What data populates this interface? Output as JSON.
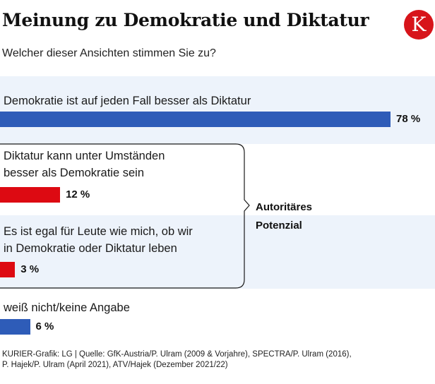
{
  "header": {
    "title": "Meinung zu Demokratie und Diktatur",
    "subtitle": "Welcher dieser Ansichten stimmen Sie zu?",
    "logo_letter": "K"
  },
  "colors": {
    "blue": "#2e5cb8",
    "red": "#dd0a12",
    "band": "#edf3fb",
    "logo": "#d7141a"
  },
  "chart_data": {
    "type": "bar",
    "orientation": "horizontal",
    "categories": [
      "Demokratie ist auf jeden Fall besser als Diktatur",
      "Diktatur kann unter Umständen besser als Demokratie sein",
      "Es ist egal für Leute wie mich, ob wir in Demokratie oder Diktatur leben",
      "weiß nicht/keine Angabe"
    ],
    "values": [
      78,
      12,
      3,
      6
    ],
    "value_labels": [
      "78 %",
      "12 %",
      "3 %",
      "6 %"
    ],
    "bar_colors": [
      "#2e5cb8",
      "#dd0a12",
      "#dd0a12",
      "#2e5cb8"
    ],
    "label_lines": [
      [
        "Demokratie ist auf jeden Fall besser als Diktatur"
      ],
      [
        "Diktatur kann unter Umständen",
        "besser als Demokratie sein"
      ],
      [
        "Es ist egal für Leute wie mich, ob wir",
        "in Demokratie oder Diktatur leben"
      ],
      [
        "weiß nicht/keine Angabe"
      ]
    ],
    "group": {
      "label_lines": [
        "Autoritäres",
        "Potenzial"
      ],
      "members": [
        1,
        2
      ]
    },
    "xlim": [
      0,
      78
    ]
  },
  "footer": {
    "source_lines": [
      "KURIER-Grafik: LG | Quelle: GfK-Austria/P. Ulram (2009 & Vorjahre), SPECTRA/P. Ulram (2016),",
      "P. Hajek/P. Ulram (April 2021), ATV/Hajek (Dezember 2021/22)"
    ]
  }
}
